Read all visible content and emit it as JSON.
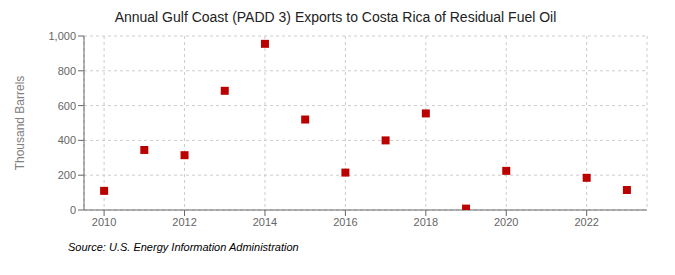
{
  "chart_data": {
    "type": "scatter",
    "title": "Annual Gulf Coast (PADD 3) Exports to Costa Rica of Residual Fuel Oil",
    "ylabel": "Thousand Barrels",
    "source": "Source: U.S. Energy Information Administration",
    "x": [
      2010,
      2011,
      2012,
      2013,
      2014,
      2015,
      2016,
      2017,
      2018,
      2019,
      2020,
      2022,
      2023
    ],
    "values": [
      110,
      345,
      315,
      685,
      955,
      520,
      215,
      400,
      555,
      8,
      225,
      185,
      115
    ],
    "xlim": [
      2009.5,
      2023.5
    ],
    "ylim": [
      0,
      1000
    ],
    "xticks": [
      2010,
      2012,
      2014,
      2016,
      2018,
      2020,
      2022
    ],
    "yticks": [
      0,
      200,
      400,
      600,
      800,
      {
        "value": 1000,
        "label": "1,000"
      }
    ],
    "color": "#bb0000",
    "marker": "square",
    "grid": true
  }
}
